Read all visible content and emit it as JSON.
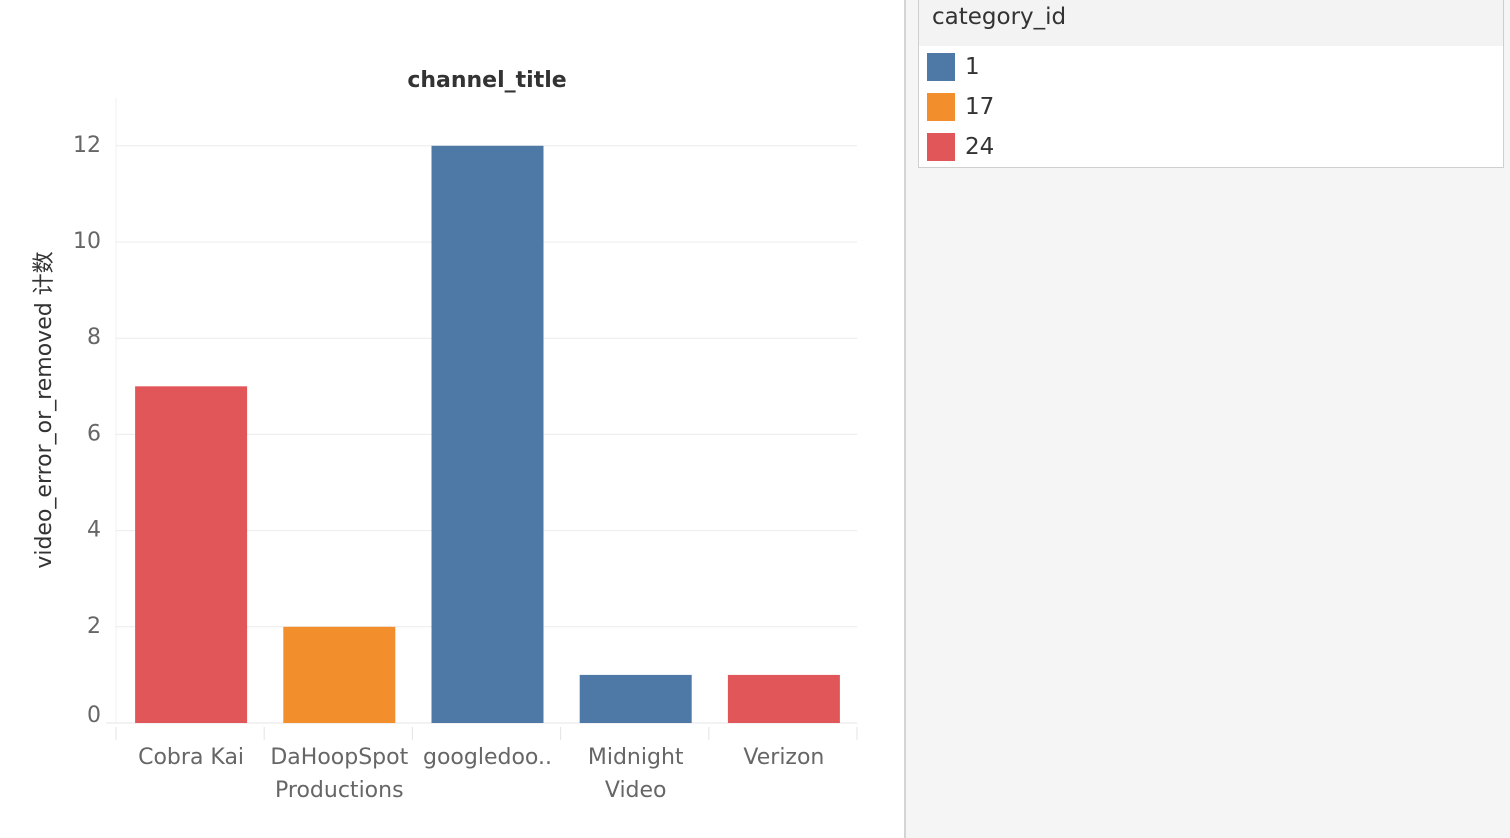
{
  "chart_data": {
    "type": "bar",
    "title": "channel_title",
    "xlabel": "",
    "ylabel": "video_error_or_removed 计数",
    "categories": [
      [
        "Cobra Kai"
      ],
      [
        "DaHoopSpot",
        "Productions"
      ],
      [
        "googledoo.."
      ],
      [
        "Midnight",
        "Video"
      ],
      [
        "Verizon"
      ]
    ],
    "values": [
      7,
      2,
      12,
      1,
      1
    ],
    "category_id": [
      "24",
      "17",
      "1",
      "1",
      "24"
    ],
    "ylim": [
      0,
      13
    ],
    "yticks": [
      0,
      2,
      4,
      6,
      8,
      10,
      12
    ],
    "grid": true,
    "legend_position": "right"
  },
  "legend": {
    "title": "category_id",
    "items": [
      {
        "label": "1",
        "color": "#4e79a7"
      },
      {
        "label": "17",
        "color": "#f28e2b"
      },
      {
        "label": "24",
        "color": "#e15759"
      }
    ]
  }
}
